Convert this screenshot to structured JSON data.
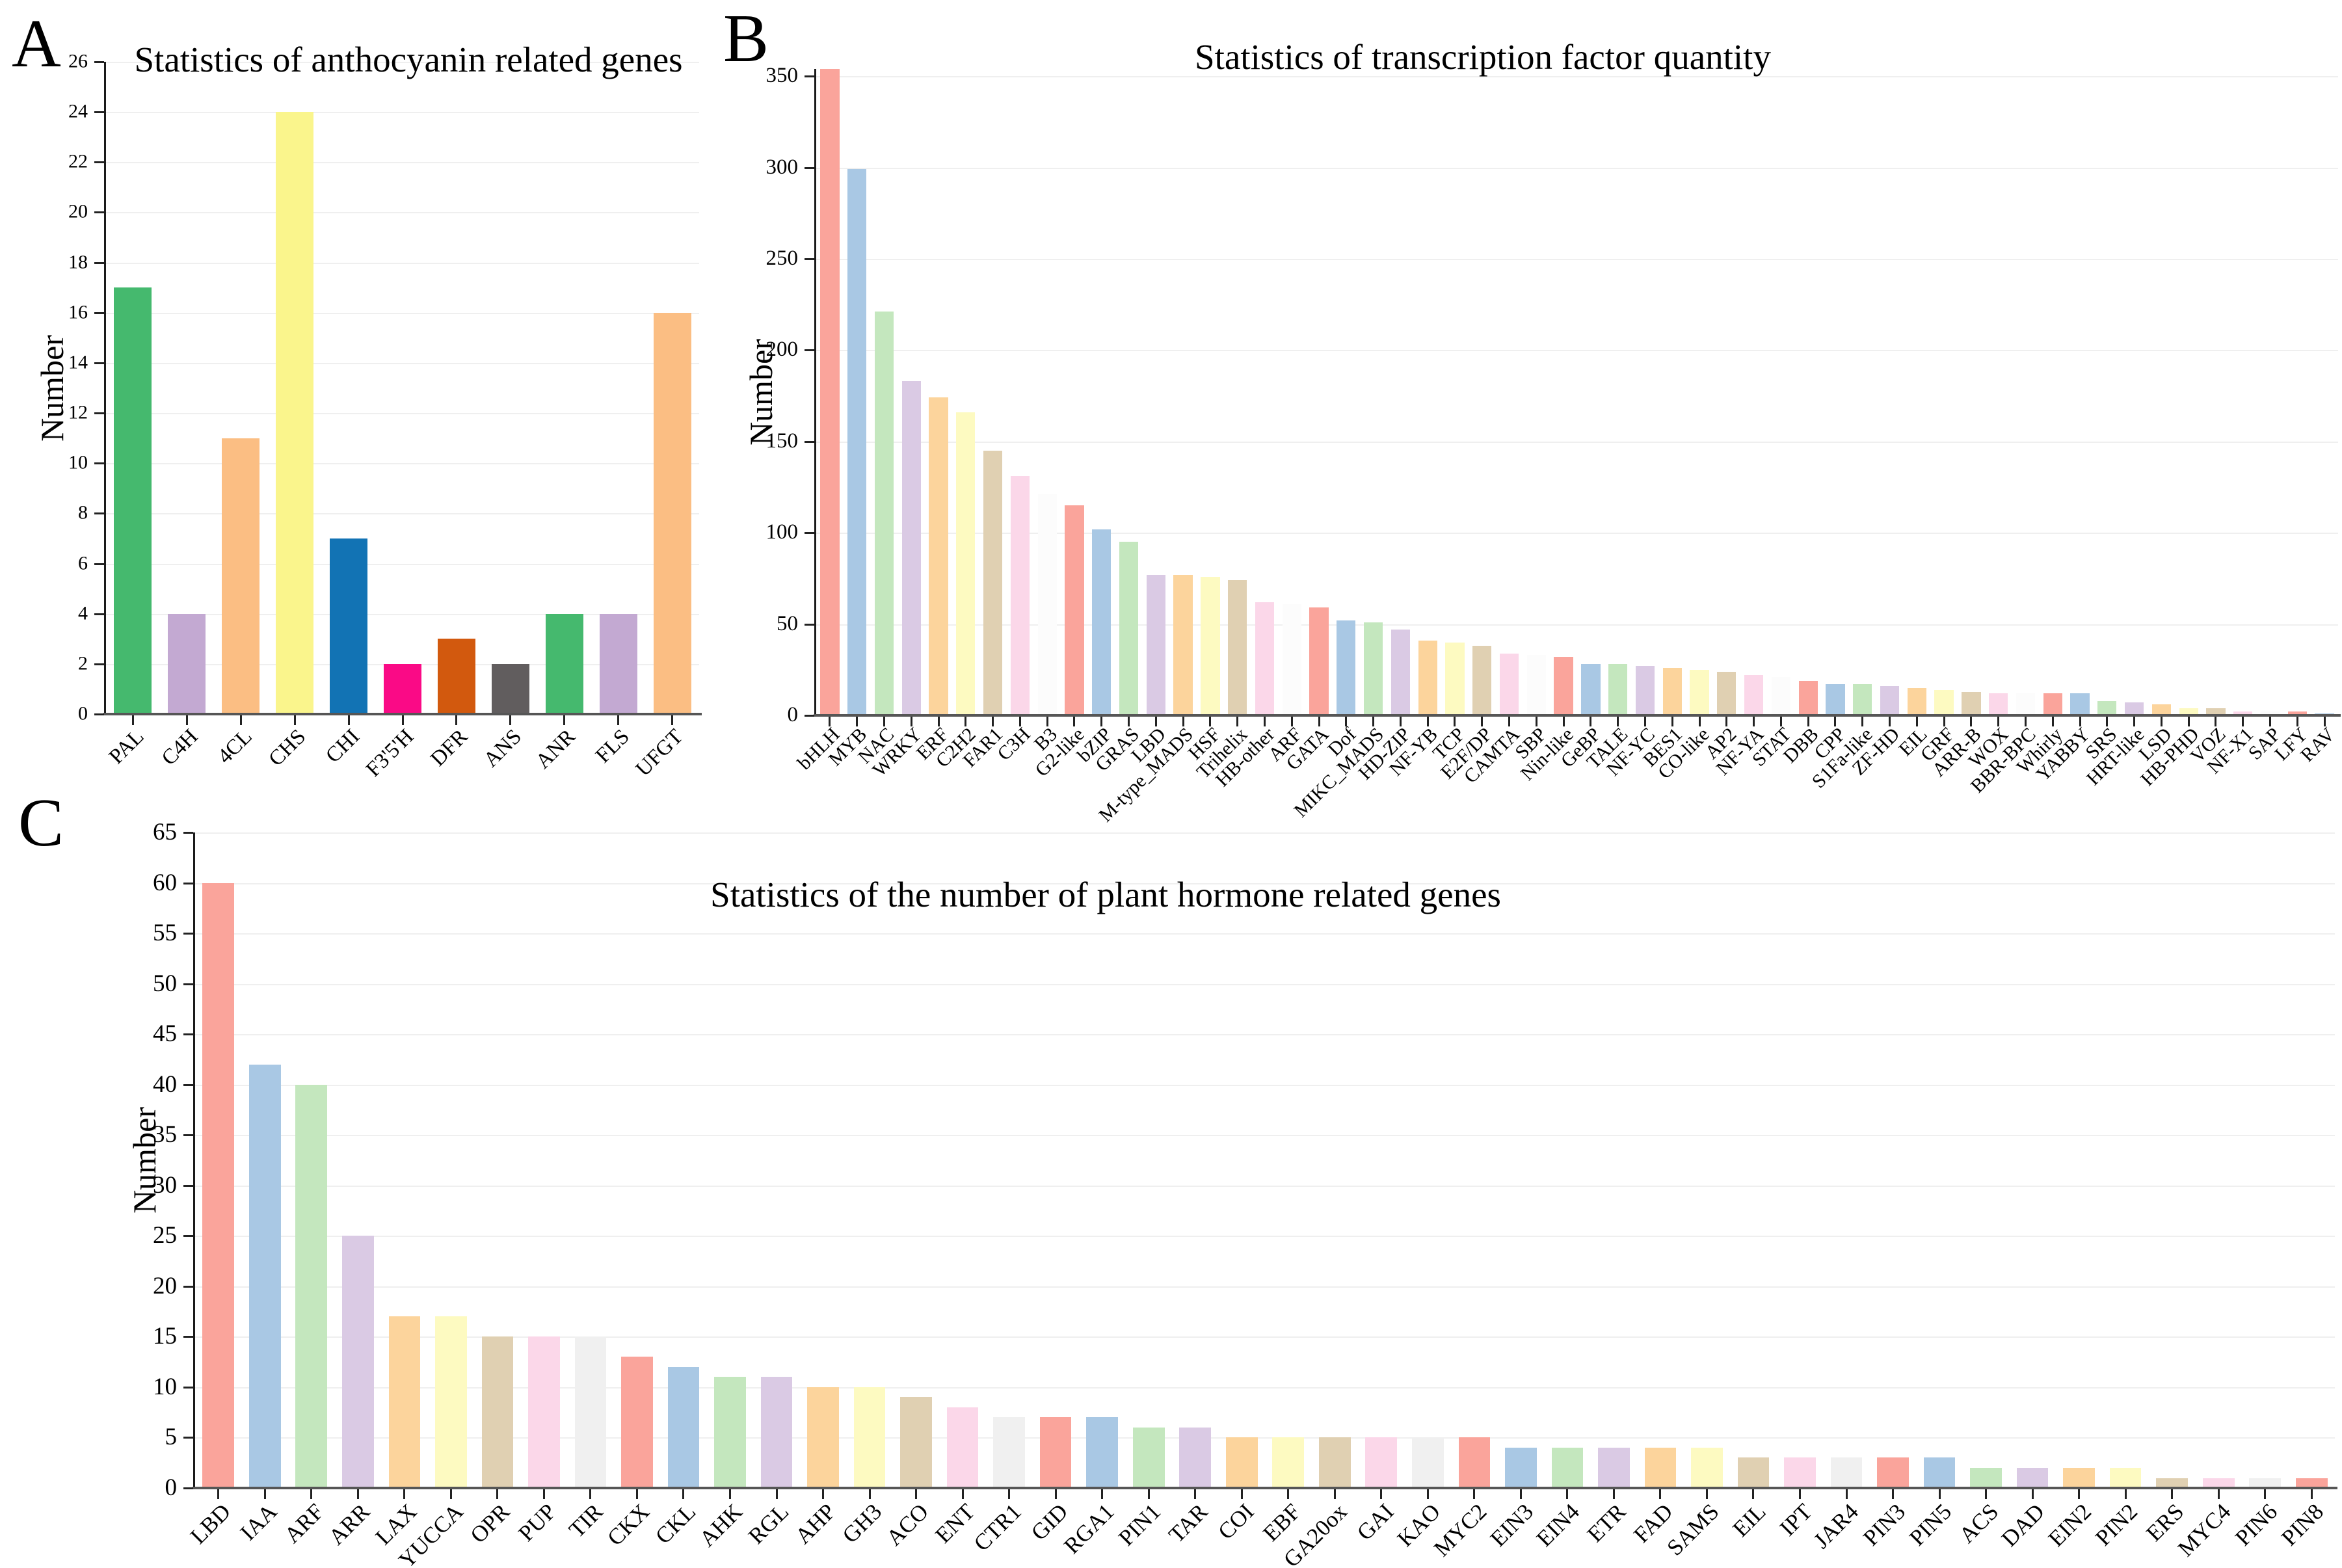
{
  "colors": {
    "background": "#FFFFFF",
    "axis_line": "#565656",
    "spine": "#1A1A1A",
    "gridline": "#EFEFEF",
    "text": "#000000",
    "pastel_palette": [
      "#FAA49B",
      "#A9C8E4",
      "#C4E7BE",
      "#DACAE4",
      "#FCD49C",
      "#FDFAC1",
      "#E0D0B2",
      "#FBD7E9",
      "#F0F0F0"
    ]
  },
  "chart_data": [
    {
      "type": "bar",
      "panel_label": "A",
      "title": "Statistics of anthocyanin related genes",
      "ylabel": "Number",
      "xlabel": "",
      "ylim": [
        0,
        26
      ],
      "ytick_max": 26,
      "ytick_step": 2,
      "grid": true,
      "xtick_rotation": 45,
      "legend": "none",
      "categories": [
        "PAL",
        "C4H",
        "4CL",
        "CHS",
        "CHI",
        "F3'5'H",
        "DFR",
        "ANS",
        "ANR",
        "FLS",
        "UFGT"
      ],
      "values": [
        17,
        4,
        11,
        24,
        7,
        2,
        3,
        2,
        4,
        4,
        16
      ],
      "bar_colors": [
        "#45B96E",
        "#C3A9D2",
        "#FBBE83",
        "#FAF58C",
        "#1273B4",
        "#FA0A86",
        "#D2590E",
        "#615D5E",
        "#45B96E",
        "#C3A9D2",
        "#FBBE83"
      ]
    },
    {
      "type": "bar",
      "panel_label": "B",
      "title": "Statistics of transcription factor quantity",
      "ylabel": "Number",
      "xlabel": "",
      "ylim": [
        0,
        354
      ],
      "ytick_max": 350,
      "ytick_step": 50,
      "grid": true,
      "xtick_rotation": 45,
      "legend": "none",
      "categories": [
        "bHLH",
        "MYB",
        "NAC",
        "WRKY",
        "ERF",
        "C2H2",
        "FAR1",
        "C3H",
        "B3",
        "G2-like",
        "bZIP",
        "GRAS",
        "LBD",
        "M-type_MADS",
        "HSF",
        "Trihelix",
        "HB-other",
        "ARF",
        "GATA",
        "Dof",
        "MIKC_MADS",
        "HD-ZIP",
        "NF-YB",
        "TCP",
        "E2F/DP",
        "CAMTA",
        "SBP",
        "Nin-like",
        "GeBP",
        "TALE",
        "NF-YC",
        "BES1",
        "CO-like",
        "AP2",
        "NF-YA",
        "STAT",
        "DBB",
        "CPP",
        "S1Fa-like",
        "ZF-HD",
        "EIL",
        "GRF",
        "ARR-B",
        "WOX",
        "BBR-BPC",
        "Whirly",
        "YABBY",
        "SRS",
        "HRT-like",
        "LSD",
        "HB-PHD",
        "VOZ",
        "NF-X1",
        "SAP",
        "LFY",
        "RAV"
      ],
      "values": [
        354,
        299,
        221,
        183,
        174,
        166,
        145,
        131,
        121,
        115,
        102,
        95,
        77,
        77,
        76,
        74,
        62,
        61,
        59,
        52,
        51,
        47,
        41,
        40,
        38,
        34,
        33,
        32,
        28,
        28,
        27,
        26,
        25,
        24,
        22,
        21,
        19,
        17,
        17,
        16,
        15,
        14,
        13,
        12,
        12,
        12,
        12,
        8,
        7,
        6,
        4,
        4,
        2,
        2,
        2,
        1
      ],
      "bar_colors": [
        "#FAA49B",
        "#A9C8E4",
        "#C4E7BE",
        "#DACAE4",
        "#FCD49C",
        "#FDFAC1",
        "#E0D0B2",
        "#FBD7E9",
        "#FCFCFC",
        "#FAA49B",
        "#A9C8E4",
        "#C4E7BE",
        "#DACAE4",
        "#FCD49C",
        "#FDFAC1",
        "#E0D0B2",
        "#FBD7E9",
        "#FCFCFC",
        "#FAA49B",
        "#A9C8E4",
        "#C4E7BE",
        "#DACAE4",
        "#FCD49C",
        "#FDFAC1",
        "#E0D0B2",
        "#FBD7E9",
        "#FCFCFC",
        "#FAA49B",
        "#A9C8E4",
        "#C4E7BE",
        "#DACAE4",
        "#FCD49C",
        "#FDFAC1",
        "#E0D0B2",
        "#FBD7E9",
        "#FCFCFC",
        "#FAA49B",
        "#A9C8E4",
        "#C4E7BE",
        "#DACAE4",
        "#FCD49C",
        "#FDFAC1",
        "#E0D0B2",
        "#FBD7E9",
        "#FCFCFC",
        "#FAA49B",
        "#A9C8E4",
        "#C4E7BE",
        "#DACAE4",
        "#FCD49C",
        "#FDFAC1",
        "#E0D0B2",
        "#FBD7E9",
        "#FCFCFC",
        "#FAA49B",
        "#A9C8E4"
      ]
    },
    {
      "type": "bar",
      "panel_label": "C",
      "title": "Statistics of the number of plant hormone related genes",
      "ylabel": "Number",
      "xlabel": "",
      "ylim": [
        0,
        65
      ],
      "ytick_max": 65,
      "ytick_step": 5,
      "grid": true,
      "xtick_rotation": 45,
      "legend": "none",
      "categories": [
        "LBD",
        "IAA",
        "ARF",
        "ARR",
        "LAX",
        "YUCCA",
        "OPR",
        "PUP",
        "TIR",
        "CKX",
        "CKL",
        "AHK",
        "RGL",
        "AHP",
        "GH3",
        "ACO",
        "ENT",
        "CTR1",
        "GID",
        "RGA1",
        "PIN1",
        "TAR",
        "COI",
        "EBF",
        "GA20ox",
        "GAI",
        "KAO",
        "MYC2",
        "EIN3",
        "EIN4",
        "ETR",
        "FAD",
        "SAMS",
        "EIL",
        "IPT",
        "JAR4",
        "PIN3",
        "PIN5",
        "ACS",
        "DAD",
        "EIN2",
        "PIN2",
        "ERS",
        "MYC4",
        "PIN6",
        "PIN8"
      ],
      "values": [
        60,
        42,
        40,
        25,
        17,
        17,
        15,
        15,
        15,
        13,
        12,
        11,
        11,
        10,
        10,
        9,
        8,
        7,
        7,
        7,
        6,
        6,
        5,
        5,
        5,
        5,
        5,
        5,
        4,
        4,
        4,
        4,
        4,
        3,
        3,
        3,
        3,
        3,
        2,
        2,
        2,
        2,
        1,
        1,
        1,
        1
      ],
      "bar_colors": [
        "#FAA49B",
        "#A9C8E4",
        "#C4E7BE",
        "#DACAE4",
        "#FCD49C",
        "#FDFAC1",
        "#E0D0B2",
        "#FBD7E9",
        "#F0F0F0",
        "#FAA49B",
        "#A9C8E4",
        "#C4E7BE",
        "#DACAE4",
        "#FCD49C",
        "#FDFAC1",
        "#E0D0B2",
        "#FBD7E9",
        "#F0F0F0",
        "#FAA49B",
        "#A9C8E4",
        "#C4E7BE",
        "#DACAE4",
        "#FCD49C",
        "#FDFAC1",
        "#E0D0B2",
        "#FBD7E9",
        "#F0F0F0",
        "#FAA49B",
        "#A9C8E4",
        "#C4E7BE",
        "#DACAE4",
        "#FCD49C",
        "#FDFAC1",
        "#E0D0B2",
        "#FBD7E9",
        "#F0F0F0",
        "#FAA49B",
        "#A9C8E4",
        "#C4E7BE",
        "#DACAE4",
        "#FCD49C",
        "#FDFAC1",
        "#E0D0B2",
        "#FBD7E9",
        "#F0F0F0",
        "#FAA49B"
      ]
    }
  ]
}
